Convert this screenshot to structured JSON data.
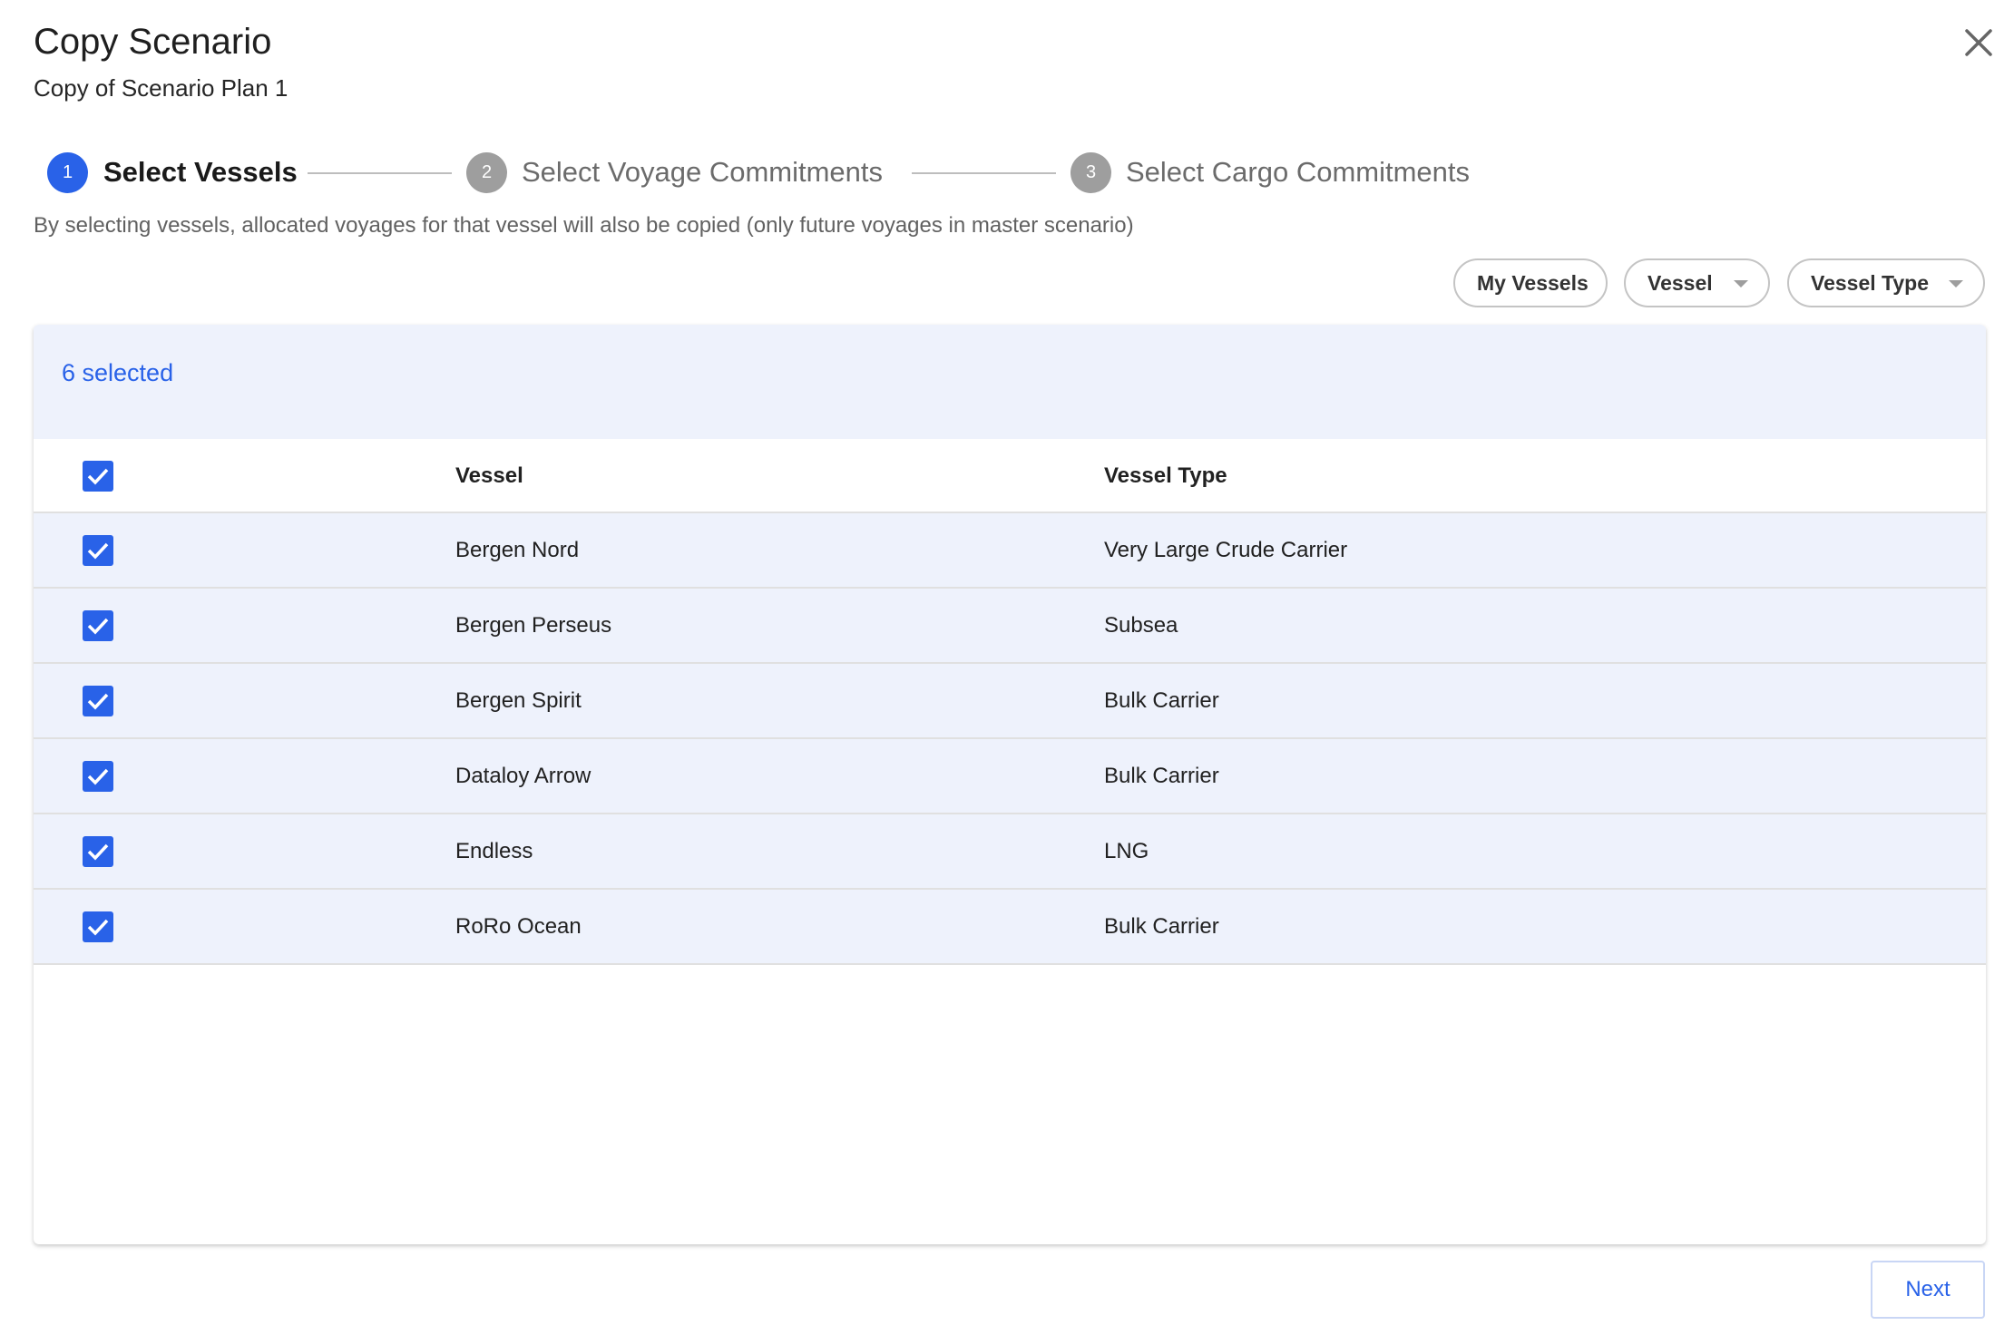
{
  "dialog": {
    "title": "Copy Scenario",
    "subtitle": "Copy of Scenario Plan 1",
    "close_icon": "close-icon"
  },
  "stepper": {
    "active_color": "#2962e8",
    "inactive_color": "#9e9e9e",
    "steps": [
      {
        "number": "1",
        "label": "Select Vessels",
        "active": true
      },
      {
        "number": "2",
        "label": "Select Voyage Commitments",
        "active": false
      },
      {
        "number": "3",
        "label": "Select Cargo Commitments",
        "active": false
      }
    ]
  },
  "description": "By selecting vessels, allocated voyages for that vessel will also be copied (only future voyages in master scenario)",
  "filters": [
    {
      "label": "My Vessels",
      "dropdown": false
    },
    {
      "label": "Vessel",
      "dropdown": true
    },
    {
      "label": "Vessel Type",
      "dropdown": true
    }
  ],
  "table": {
    "selected_text": "6 selected",
    "all_checked": true,
    "columns": [
      "Vessel",
      "Vessel Type"
    ],
    "rows": [
      {
        "vessel": "Bergen Nord",
        "type": "Very Large Crude Carrier",
        "checked": true
      },
      {
        "vessel": "Bergen Perseus",
        "type": "Subsea",
        "checked": true
      },
      {
        "vessel": "Bergen Spirit",
        "type": "Bulk Carrier",
        "checked": true
      },
      {
        "vessel": "Dataloy Arrow",
        "type": "Bulk Carrier",
        "checked": true
      },
      {
        "vessel": "Endless",
        "type": "LNG",
        "checked": true
      },
      {
        "vessel": "RoRo Ocean",
        "type": "Bulk Carrier",
        "checked": true
      }
    ]
  },
  "footer": {
    "next_label": "Next"
  }
}
